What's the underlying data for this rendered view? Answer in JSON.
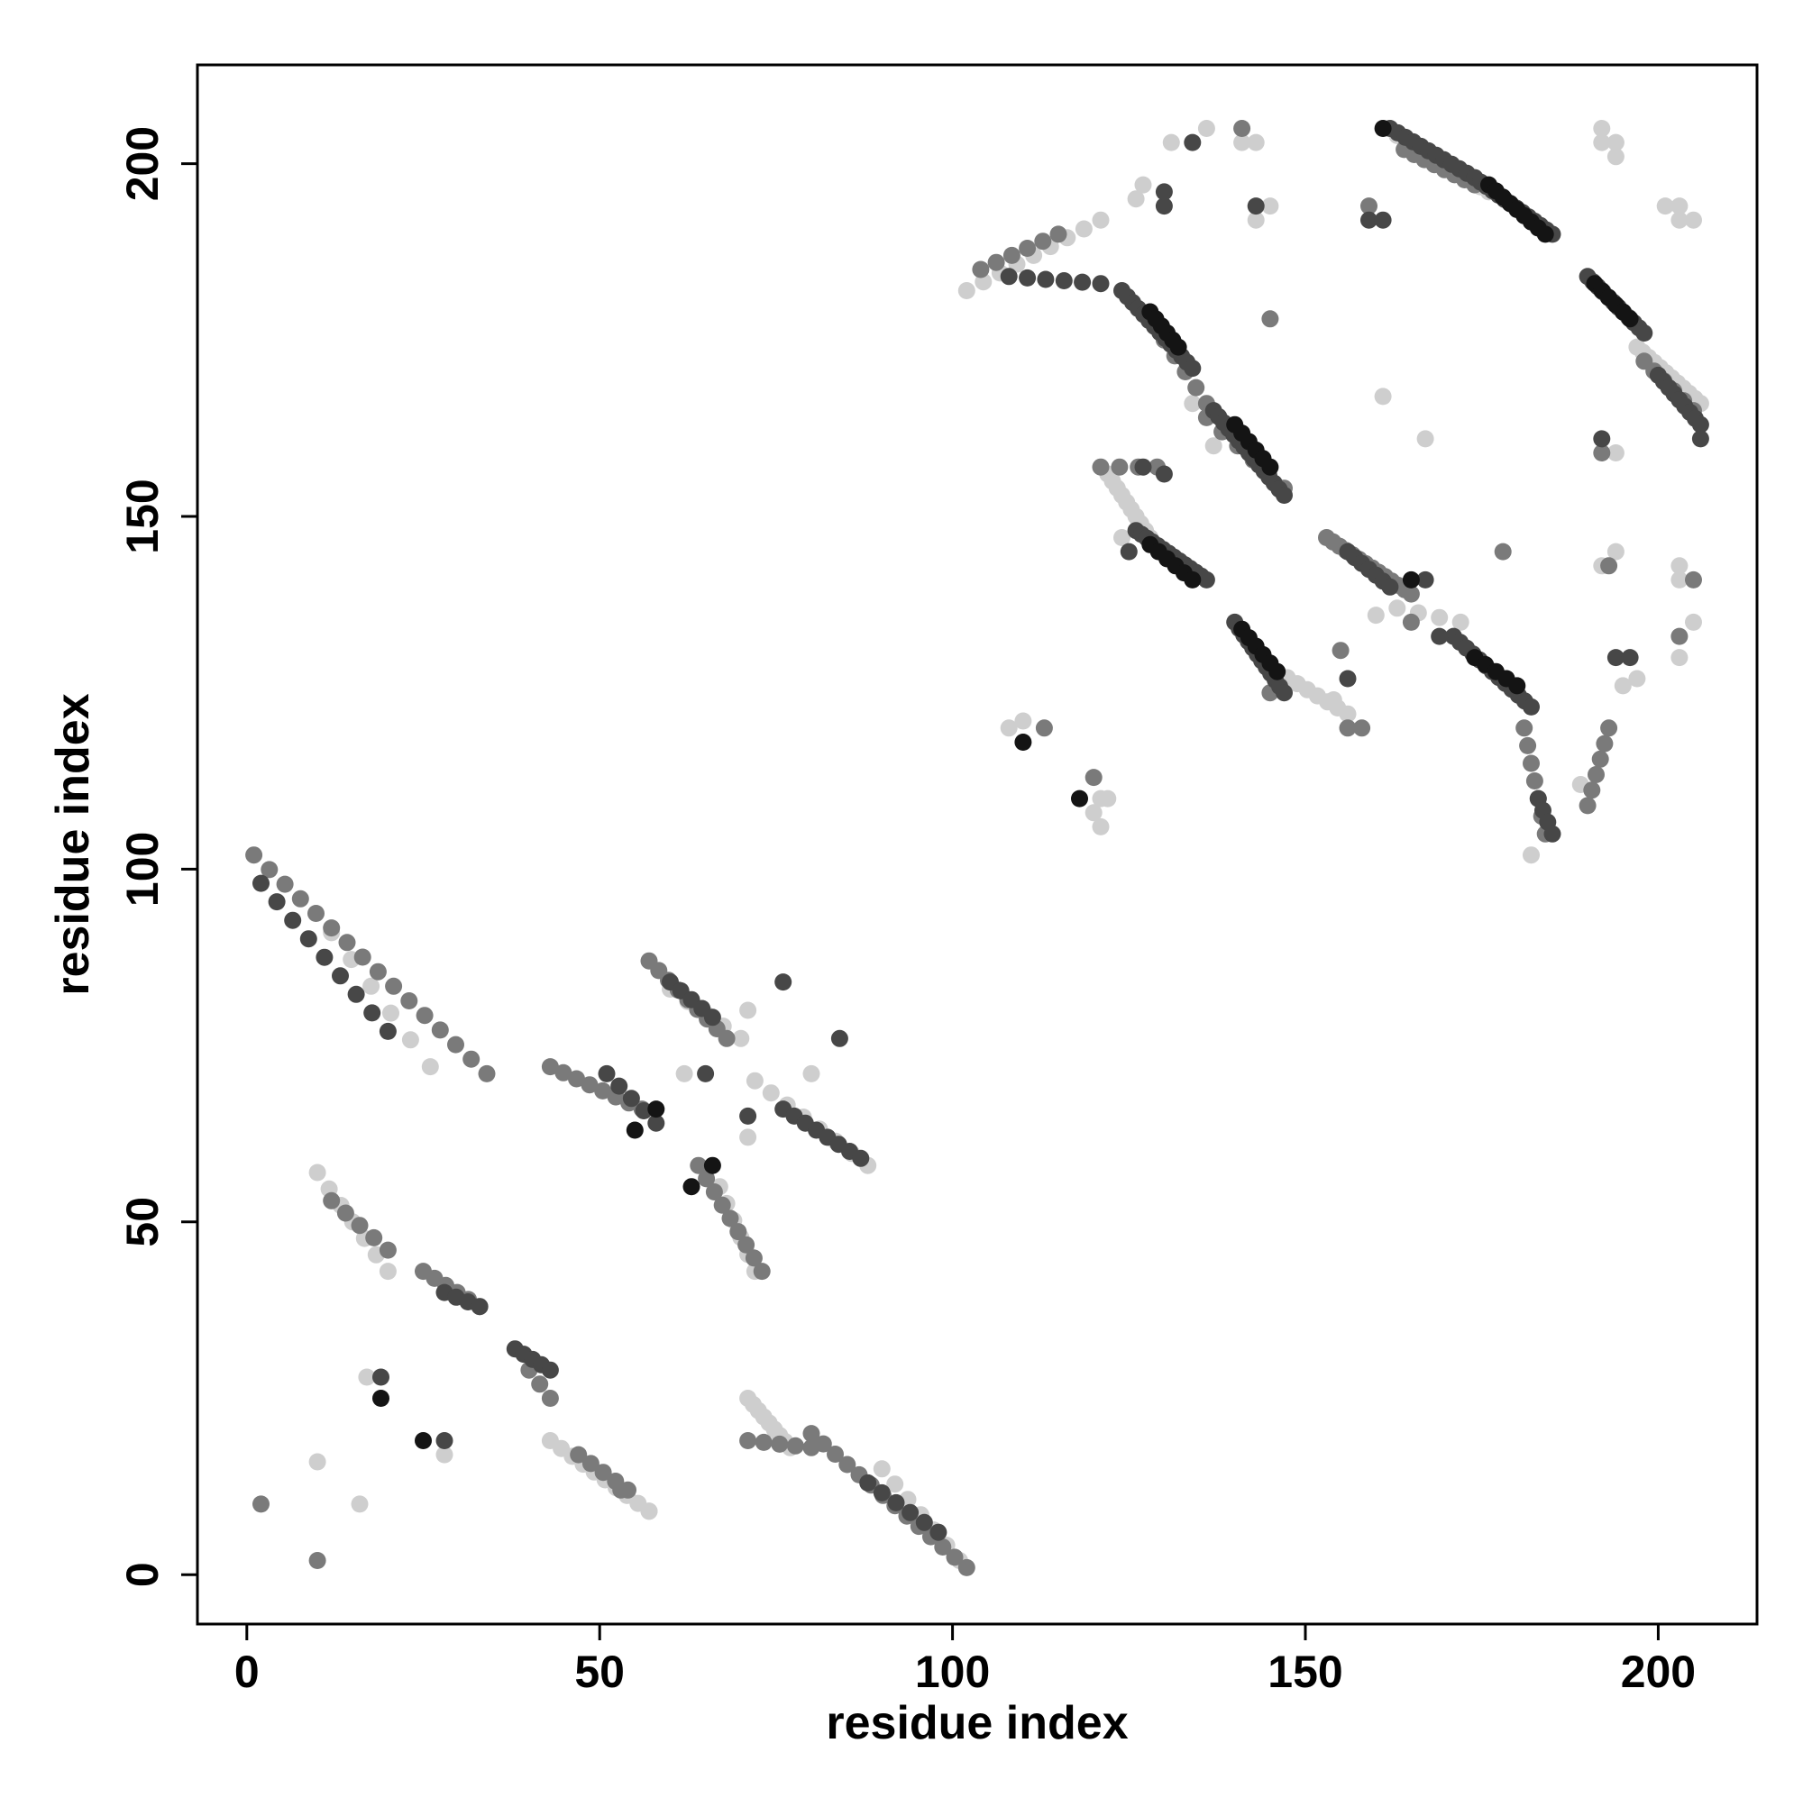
{
  "chart_data": {
    "type": "scatter",
    "title": "",
    "xlabel": "residue index",
    "ylabel": "residue index",
    "xlim": [
      -7,
      214
    ],
    "ylim": [
      -7,
      214
    ],
    "x_ticks": [
      0,
      50,
      100,
      150,
      200
    ],
    "y_ticks": [
      0,
      50,
      100,
      150,
      200
    ],
    "x_tick_labels": [
      "0",
      "50",
      "100",
      "150",
      "200"
    ],
    "y_tick_labels": [
      "0",
      "50",
      "100",
      "150",
      "200"
    ],
    "grid": false,
    "legend": "none",
    "marker_colors": {
      "black": "#141414",
      "dark": "#474747",
      "mid": "#7a7a7a",
      "light": "#b0b0b0",
      "pale": "#cecece"
    },
    "segments": [
      {
        "shade": "mid",
        "x0": 1,
        "y0": 102,
        "x1": 34,
        "y1": 71,
        "n": 16
      },
      {
        "shade": "dark",
        "x0": 2,
        "y0": 98,
        "x1": 20,
        "y1": 77,
        "n": 9
      },
      {
        "shade": "pale",
        "x0": 12,
        "y0": 91,
        "x1": 26,
        "y1": 72,
        "n": 6
      },
      {
        "shade": "pale",
        "x0": 10,
        "y0": 57,
        "x1": 20,
        "y1": 43,
        "n": 7
      },
      {
        "shade": "mid",
        "x0": 12,
        "y0": 53,
        "x1": 20,
        "y1": 46,
        "n": 5
      },
      {
        "shade": "mid",
        "x0": 25,
        "y0": 43,
        "x1": 33,
        "y1": 38,
        "n": 6
      },
      {
        "shade": "dark",
        "x0": 28,
        "y0": 40,
        "x1": 33,
        "y1": 38,
        "n": 4
      },
      {
        "shade": "dark",
        "x0": 38,
        "y0": 32,
        "x1": 43,
        "y1": 29,
        "n": 5
      },
      {
        "shade": "mid",
        "x0": 40,
        "y0": 29,
        "x1": 43,
        "y1": 25,
        "n": 3
      },
      {
        "shade": "pale",
        "x0": 43,
        "y0": 19,
        "x1": 57,
        "y1": 9,
        "n": 10
      },
      {
        "shade": "mid",
        "x0": 47,
        "y0": 17,
        "x1": 54,
        "y1": 12,
        "n": 5
      },
      {
        "shade": "pale",
        "x0": 71,
        "y0": 25,
        "x1": 77,
        "y1": 18,
        "n": 9
      },
      {
        "shade": "mid",
        "x0": 71,
        "y0": 19,
        "x1": 80,
        "y1": 18,
        "n": 5
      },
      {
        "shade": "mid",
        "x0": 80,
        "y0": 20,
        "x1": 102,
        "y1": 1,
        "n": 14
      },
      {
        "shade": "dark",
        "x0": 88,
        "y0": 13,
        "x1": 98,
        "y1": 6,
        "n": 6
      },
      {
        "shade": "pale",
        "x0": 90,
        "y0": 15,
        "x1": 101,
        "y1": 2,
        "n": 7
      },
      {
        "shade": "mid",
        "x0": 43,
        "y0": 72,
        "x1": 56,
        "y1": 66,
        "n": 8
      },
      {
        "shade": "dark",
        "x0": 51,
        "y0": 71,
        "x1": 58,
        "y1": 64,
        "n": 5
      },
      {
        "shade": "mid",
        "x0": 57,
        "y0": 87,
        "x1": 68,
        "y1": 76,
        "n": 9
      },
      {
        "shade": "dark",
        "x0": 60,
        "y0": 84,
        "x1": 66,
        "y1": 79,
        "n": 5
      },
      {
        "shade": "pale",
        "x0": 60,
        "y0": 83,
        "x1": 70,
        "y1": 76,
        "n": 5
      },
      {
        "shade": "mid",
        "x0": 64,
        "y0": 58,
        "x1": 73,
        "y1": 43,
        "n": 9
      },
      {
        "shade": "pale",
        "x0": 67,
        "y0": 55,
        "x1": 72,
        "y1": 43,
        "n": 6
      },
      {
        "shade": "pale",
        "x0": 72,
        "y0": 70,
        "x1": 88,
        "y1": 58,
        "n": 8
      },
      {
        "shade": "dark",
        "x0": 76,
        "y0": 66,
        "x1": 87,
        "y1": 59,
        "n": 8
      },
      {
        "shade": "pale",
        "x0": 102,
        "y0": 182,
        "x1": 121,
        "y1": 192,
        "n": 9
      },
      {
        "shade": "mid",
        "x0": 104,
        "y0": 185,
        "x1": 115,
        "y1": 190,
        "n": 6
      },
      {
        "shade": "dark",
        "x0": 108,
        "y0": 184,
        "x1": 121,
        "y1": 183,
        "n": 6
      },
      {
        "shade": "dark",
        "x0": 124,
        "y0": 182,
        "x1": 134,
        "y1": 171,
        "n": 14
      },
      {
        "shade": "black",
        "x0": 128,
        "y0": 179,
        "x1": 132,
        "y1": 174,
        "n": 6
      },
      {
        "shade": "mid",
        "x0": 130,
        "y0": 175,
        "x1": 136,
        "y1": 166,
        "n": 5
      },
      {
        "shade": "dark",
        "x0": 137,
        "y0": 165,
        "x1": 147,
        "y1": 153,
        "n": 15
      },
      {
        "shade": "black",
        "x0": 140,
        "y0": 163,
        "x1": 145,
        "y1": 157,
        "n": 6
      },
      {
        "shade": "mid",
        "x0": 136,
        "y0": 164,
        "x1": 147,
        "y1": 154,
        "n": 6
      },
      {
        "shade": "pale",
        "x0": 122,
        "y0": 156,
        "x1": 128,
        "y1": 147,
        "n": 10
      },
      {
        "shade": "dark",
        "x0": 126,
        "y0": 148,
        "x1": 136,
        "y1": 141,
        "n": 14
      },
      {
        "shade": "black",
        "x0": 128,
        "y0": 146,
        "x1": 134,
        "y1": 141,
        "n": 6
      },
      {
        "shade": "mid",
        "x0": 121,
        "y0": 157,
        "x1": 129,
        "y1": 157,
        "n": 4
      },
      {
        "shade": "dark",
        "x0": 140,
        "y0": 135,
        "x1": 147,
        "y1": 125,
        "n": 12
      },
      {
        "shade": "black",
        "x0": 141,
        "y0": 134,
        "x1": 146,
        "y1": 128,
        "n": 6
      },
      {
        "shade": "pale",
        "x0": 146,
        "y0": 128,
        "x1": 156,
        "y1": 122,
        "n": 8
      },
      {
        "shade": "mid",
        "x0": 153,
        "y0": 147,
        "x1": 165,
        "y1": 139,
        "n": 14
      },
      {
        "shade": "dark",
        "x0": 156,
        "y0": 145,
        "x1": 162,
        "y1": 140,
        "n": 7
      },
      {
        "shade": "pale",
        "x0": 163,
        "y0": 137,
        "x1": 172,
        "y1": 135,
        "n": 4
      },
      {
        "shade": "dark",
        "x0": 171,
        "y0": 133,
        "x1": 182,
        "y1": 123,
        "n": 13
      },
      {
        "shade": "black",
        "x0": 174,
        "y0": 130,
        "x1": 180,
        "y1": 126,
        "n": 5
      },
      {
        "shade": "mid",
        "x0": 181,
        "y0": 120,
        "x1": 184,
        "y1": 105,
        "n": 7
      },
      {
        "shade": "dark",
        "x0": 183,
        "y0": 110,
        "x1": 185,
        "y1": 105,
        "n": 4
      },
      {
        "shade": "mid",
        "x0": 190,
        "y0": 109,
        "x1": 193,
        "y1": 120,
        "n": 6
      },
      {
        "shade": "dark",
        "x0": 162,
        "y0": 205,
        "x1": 174,
        "y1": 198,
        "n": 12
      },
      {
        "shade": "pale",
        "x0": 163,
        "y0": 204,
        "x1": 176,
        "y1": 196,
        "n": 12
      },
      {
        "shade": "mid",
        "x0": 164,
        "y0": 202,
        "x1": 174,
        "y1": 197,
        "n": 8
      },
      {
        "shade": "dark",
        "x0": 174,
        "y0": 198,
        "x1": 185,
        "y1": 190,
        "n": 14
      },
      {
        "shade": "black",
        "x0": 176,
        "y0": 197,
        "x1": 184,
        "y1": 190,
        "n": 9
      },
      {
        "shade": "dark",
        "x0": 190,
        "y0": 184,
        "x1": 198,
        "y1": 176,
        "n": 12
      },
      {
        "shade": "black",
        "x0": 191,
        "y0": 183,
        "x1": 196,
        "y1": 178,
        "n": 6
      },
      {
        "shade": "pale",
        "x0": 197,
        "y0": 174,
        "x1": 206,
        "y1": 166,
        "n": 12
      },
      {
        "shade": "dark",
        "x0": 200,
        "y0": 170,
        "x1": 206,
        "y1": 163,
        "n": 9
      },
      {
        "shade": "mid",
        "x0": 198,
        "y0": 172,
        "x1": 205,
        "y1": 165,
        "n": 6
      }
    ],
    "points": [
      {
        "x": 2,
        "y": 10,
        "shade": "mid"
      },
      {
        "x": 10,
        "y": 2,
        "shade": "mid"
      },
      {
        "x": 10,
        "y": 16,
        "shade": "pale"
      },
      {
        "x": 16,
        "y": 10,
        "shade": "pale"
      },
      {
        "x": 19,
        "y": 28,
        "shade": "dark"
      },
      {
        "x": 19,
        "y": 25,
        "shade": "black"
      },
      {
        "x": 17,
        "y": 28,
        "shade": "pale"
      },
      {
        "x": 25,
        "y": 19,
        "shade": "black"
      },
      {
        "x": 28,
        "y": 19,
        "shade": "dark"
      },
      {
        "x": 28,
        "y": 17,
        "shade": "pale"
      },
      {
        "x": 55,
        "y": 63,
        "shade": "black"
      },
      {
        "x": 58,
        "y": 66,
        "shade": "black"
      },
      {
        "x": 63,
        "y": 55,
        "shade": "black"
      },
      {
        "x": 66,
        "y": 58,
        "shade": "black"
      },
      {
        "x": 76,
        "y": 84,
        "shade": "dark"
      },
      {
        "x": 84,
        "y": 76,
        "shade": "dark"
      },
      {
        "x": 65,
        "y": 71,
        "shade": "dark"
      },
      {
        "x": 71,
        "y": 65,
        "shade": "dark"
      },
      {
        "x": 71,
        "y": 80,
        "shade": "pale"
      },
      {
        "x": 80,
        "y": 71,
        "shade": "pale"
      },
      {
        "x": 62,
        "y": 71,
        "shade": "pale"
      },
      {
        "x": 71,
        "y": 62,
        "shade": "pale"
      },
      {
        "x": 57,
        "y": 9,
        "shade": "pale"
      },
      {
        "x": 53,
        "y": 12,
        "shade": "mid"
      },
      {
        "x": 108,
        "y": 120,
        "shade": "pale"
      },
      {
        "x": 110,
        "y": 118,
        "shade": "black"
      },
      {
        "x": 110,
        "y": 121,
        "shade": "pale"
      },
      {
        "x": 113,
        "y": 120,
        "shade": "mid"
      },
      {
        "x": 118,
        "y": 110,
        "shade": "black"
      },
      {
        "x": 120,
        "y": 113,
        "shade": "mid"
      },
      {
        "x": 121,
        "y": 110,
        "shade": "pale"
      },
      {
        "x": 120,
        "y": 108,
        "shade": "pale"
      },
      {
        "x": 121,
        "y": 106,
        "shade": "pale"
      },
      {
        "x": 122,
        "y": 110,
        "shade": "pale"
      },
      {
        "x": 127,
        "y": 197,
        "shade": "pale"
      },
      {
        "x": 126,
        "y": 195,
        "shade": "pale"
      },
      {
        "x": 130,
        "y": 194,
        "shade": "dark"
      },
      {
        "x": 130,
        "y": 196,
        "shade": "dark"
      },
      {
        "x": 131,
        "y": 203,
        "shade": "pale"
      },
      {
        "x": 134,
        "y": 203,
        "shade": "dark"
      },
      {
        "x": 136,
        "y": 205,
        "shade": "pale"
      },
      {
        "x": 141,
        "y": 205,
        "shade": "mid"
      },
      {
        "x": 141,
        "y": 203,
        "shade": "pale"
      },
      {
        "x": 143,
        "y": 203,
        "shade": "pale"
      },
      {
        "x": 143,
        "y": 194,
        "shade": "dark"
      },
      {
        "x": 143,
        "y": 192,
        "shade": "pale"
      },
      {
        "x": 145,
        "y": 194,
        "shade": "pale"
      },
      {
        "x": 145,
        "y": 178,
        "shade": "mid"
      },
      {
        "x": 161,
        "y": 167,
        "shade": "pale"
      },
      {
        "x": 167,
        "y": 161,
        "shade": "pale"
      },
      {
        "x": 178,
        "y": 145,
        "shade": "mid"
      },
      {
        "x": 159,
        "y": 194,
        "shade": "mid"
      },
      {
        "x": 159,
        "y": 192,
        "shade": "dark"
      },
      {
        "x": 161,
        "y": 192,
        "shade": "dark"
      },
      {
        "x": 161,
        "y": 205,
        "shade": "black"
      },
      {
        "x": 165,
        "y": 141,
        "shade": "black"
      },
      {
        "x": 167,
        "y": 141,
        "shade": "dark"
      },
      {
        "x": 160,
        "y": 136,
        "shade": "pale"
      },
      {
        "x": 165,
        "y": 135,
        "shade": "mid"
      },
      {
        "x": 169,
        "y": 133,
        "shade": "dark"
      },
      {
        "x": 155,
        "y": 131,
        "shade": "mid"
      },
      {
        "x": 156,
        "y": 127,
        "shade": "dark"
      },
      {
        "x": 156,
        "y": 120,
        "shade": "mid"
      },
      {
        "x": 158,
        "y": 120,
        "shade": "mid"
      },
      {
        "x": 154,
        "y": 124,
        "shade": "pale"
      },
      {
        "x": 145,
        "y": 125,
        "shade": "mid"
      },
      {
        "x": 137,
        "y": 160,
        "shade": "pale"
      },
      {
        "x": 134,
        "y": 166,
        "shade": "pale"
      },
      {
        "x": 130,
        "y": 156,
        "shade": "dark"
      },
      {
        "x": 127,
        "y": 157,
        "shade": "dark"
      },
      {
        "x": 125,
        "y": 145,
        "shade": "dark"
      },
      {
        "x": 124,
        "y": 147,
        "shade": "pale"
      },
      {
        "x": 182,
        "y": 102,
        "shade": "pale"
      },
      {
        "x": 189,
        "y": 112,
        "shade": "pale"
      },
      {
        "x": 192,
        "y": 161,
        "shade": "dark"
      },
      {
        "x": 192,
        "y": 159,
        "shade": "mid"
      },
      {
        "x": 194,
        "y": 159,
        "shade": "pale"
      },
      {
        "x": 192,
        "y": 143,
        "shade": "pale"
      },
      {
        "x": 193,
        "y": 143,
        "shade": "mid"
      },
      {
        "x": 194,
        "y": 145,
        "shade": "pale"
      },
      {
        "x": 194,
        "y": 130,
        "shade": "dark"
      },
      {
        "x": 196,
        "y": 130,
        "shade": "dark"
      },
      {
        "x": 195,
        "y": 126,
        "shade": "pale"
      },
      {
        "x": 197,
        "y": 127,
        "shade": "pale"
      },
      {
        "x": 192,
        "y": 205,
        "shade": "pale"
      },
      {
        "x": 192,
        "y": 203,
        "shade": "pale"
      },
      {
        "x": 194,
        "y": 203,
        "shade": "pale"
      },
      {
        "x": 194,
        "y": 201,
        "shade": "pale"
      },
      {
        "x": 201,
        "y": 194,
        "shade": "pale"
      },
      {
        "x": 203,
        "y": 194,
        "shade": "pale"
      },
      {
        "x": 203,
        "y": 192,
        "shade": "pale"
      },
      {
        "x": 205,
        "y": 192,
        "shade": "pale"
      },
      {
        "x": 203,
        "y": 143,
        "shade": "pale"
      },
      {
        "x": 205,
        "y": 141,
        "shade": "mid"
      },
      {
        "x": 203,
        "y": 141,
        "shade": "pale"
      },
      {
        "x": 203,
        "y": 133,
        "shade": "mid"
      },
      {
        "x": 205,
        "y": 135,
        "shade": "pale"
      },
      {
        "x": 203,
        "y": 130,
        "shade": "pale"
      },
      {
        "x": 206,
        "y": 161,
        "shade": "dark"
      }
    ]
  }
}
